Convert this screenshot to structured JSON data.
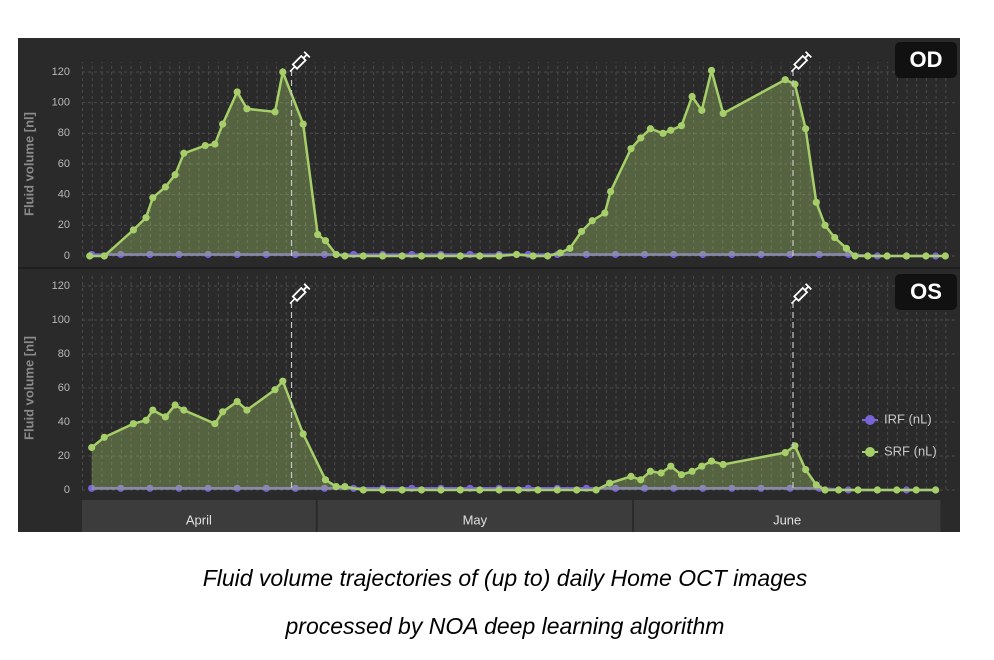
{
  "chart_data": [
    {
      "type": "line",
      "title": "OD",
      "y_label": "Fluid volume [nl]",
      "xlim": [
        0,
        90
      ],
      "ylim": [
        0,
        120
      ],
      "yticks": [
        0,
        20,
        40,
        60,
        80,
        100,
        120
      ],
      "grid": true,
      "injections": [
        21.6,
        73.3
      ],
      "series": [
        {
          "color": "#7b63d8",
          "x": [
            1,
            4,
            7,
            10,
            13,
            16,
            19,
            22,
            25,
            28,
            31,
            34,
            37,
            40,
            43,
            46,
            49,
            52,
            55,
            58,
            61,
            64,
            67,
            70,
            73,
            76,
            79,
            82,
            85,
            88
          ],
          "values": [
            1,
            1,
            1,
            1,
            1,
            1,
            1,
            1,
            1,
            1,
            1,
            1,
            1,
            1,
            1,
            1,
            1,
            1,
            1,
            1,
            1,
            1,
            1,
            1,
            1,
            1,
            1,
            0,
            0,
            0
          ]
        },
        {
          "color": "#a7cf69",
          "fill_area": true,
          "x": [
            0.8,
            2.3,
            5.3,
            6.6,
            7.3,
            8.6,
            9.6,
            10.5,
            12.7,
            13.7,
            14.5,
            16.0,
            17.0,
            19.9,
            20.7,
            22.8,
            24.3,
            25.1,
            26.2,
            27.1,
            29,
            31,
            33,
            35,
            37,
            39,
            41,
            43,
            44.8,
            46.5,
            48,
            49.3,
            50.3,
            51.5,
            52.6,
            53.9,
            54.5,
            56.6,
            57.6,
            58.6,
            59.9,
            60.7,
            61.8,
            62.9,
            63.9,
            64.9,
            66.1,
            72.5,
            73.5,
            74.6,
            75.7,
            76.6,
            77.6,
            78.8,
            79.7,
            81,
            83,
            85,
            87,
            89
          ],
          "values": [
            0,
            0,
            17,
            25,
            38,
            45,
            53,
            67,
            72,
            73,
            86,
            107,
            96,
            94,
            120,
            86,
            14,
            10,
            1,
            0,
            0,
            0,
            0,
            0,
            0,
            0,
            0,
            0,
            1,
            0,
            0,
            2,
            5,
            16,
            23,
            28,
            42,
            70,
            77,
            83,
            80,
            82,
            85,
            104,
            95,
            121,
            93,
            115,
            112,
            83,
            35,
            20,
            12,
            5,
            0,
            0,
            0,
            0,
            0,
            0
          ]
        }
      ]
    },
    {
      "type": "line",
      "title": "OS",
      "y_label": "Fluid volume [nl]",
      "xlim": [
        0,
        90
      ],
      "ylim": [
        0,
        120
      ],
      "yticks": [
        0,
        20,
        40,
        60,
        80,
        100,
        120
      ],
      "grid": true,
      "injections": [
        21.6,
        73.3
      ],
      "months": [
        {
          "label": "April",
          "start": 0,
          "end": 24.1
        },
        {
          "label": "May",
          "start": 24.3,
          "end": 56.7
        },
        {
          "label": "June",
          "start": 56.9,
          "end": 88.5
        }
      ],
      "legend": "right",
      "series": [
        {
          "name": "IRF (nL)",
          "color": "#7b63d8",
          "x": [
            1,
            4,
            7,
            10,
            13,
            16,
            19,
            22,
            25,
            28,
            31,
            34,
            37,
            40,
            43,
            46,
            49,
            52,
            55,
            58,
            61,
            64,
            67,
            70,
            73,
            76,
            79,
            82,
            85,
            88
          ],
          "values": [
            1,
            1,
            1,
            1,
            1,
            1,
            1,
            1,
            1,
            1,
            1,
            1,
            1,
            1,
            1,
            1,
            1,
            1,
            1,
            1,
            1,
            1,
            1,
            1,
            1,
            1,
            0,
            0,
            0,
            0
          ]
        },
        {
          "name": "SRF (nL)",
          "color": "#a7cf69",
          "fill_area": true,
          "x": [
            1.0,
            2.3,
            5.3,
            6.6,
            7.3,
            8.6,
            9.6,
            10.5,
            13.7,
            14.5,
            16.0,
            17.0,
            19.9,
            20.7,
            22.8,
            25.1,
            26.2,
            27.1,
            29,
            31,
            33,
            35,
            37,
            39,
            41,
            43,
            45,
            47,
            49,
            51,
            53,
            54.4,
            56.6,
            57.6,
            58.6,
            59.7,
            60.7,
            61.8,
            62.9,
            63.9,
            64.9,
            66.1,
            72.5,
            73.5,
            74.6,
            75.7,
            76.6,
            78,
            80,
            82,
            84,
            86,
            88
          ],
          "values": [
            25,
            31,
            39,
            41,
            47,
            43,
            50,
            47,
            39,
            46,
            52,
            47,
            59,
            64,
            33,
            6,
            2,
            2,
            0,
            0,
            0,
            0,
            0,
            0,
            0,
            0,
            0,
            0,
            0,
            0,
            0,
            4,
            8,
            6,
            11,
            10,
            14,
            9,
            11,
            14,
            17,
            15,
            22,
            26,
            12,
            3,
            0,
            0,
            0,
            0,
            0,
            0,
            0
          ]
        }
      ]
    }
  ],
  "caption": [
    "Fluid volume trajectories of (up to) daily Home OCT images",
    "processed by NOA deep learning algorithm"
  ]
}
